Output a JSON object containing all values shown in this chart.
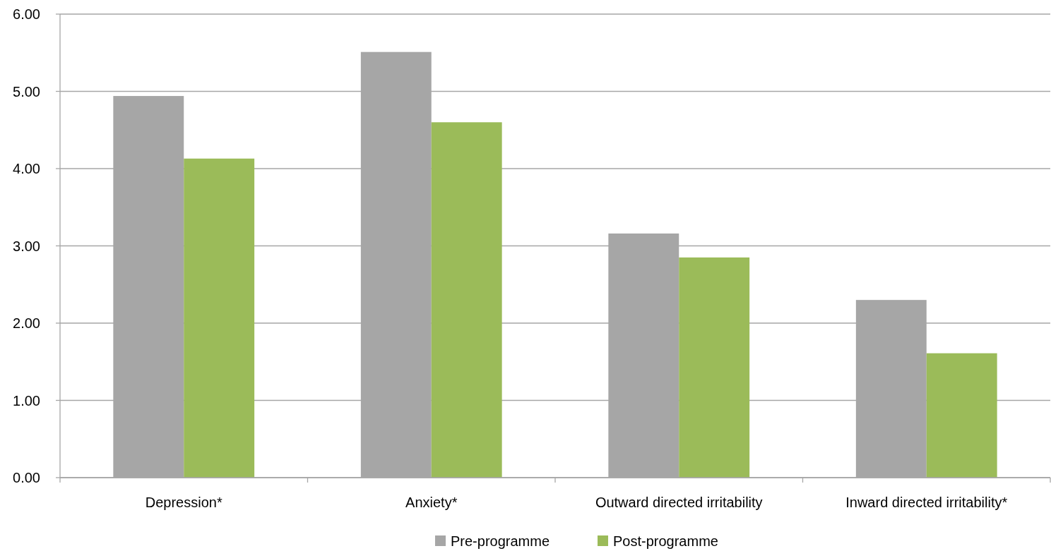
{
  "chart_data": {
    "type": "bar",
    "categories": [
      "Depression*",
      "Anxiety*",
      "Outward directed irritability",
      "Inward directed irritability*"
    ],
    "series": [
      {
        "name": "Pre-programme",
        "color": "#a6a6a6",
        "values": [
          4.94,
          5.51,
          3.16,
          2.3
        ]
      },
      {
        "name": "Post-programme",
        "color": "#9bbb59",
        "values": [
          4.13,
          4.6,
          2.85,
          1.61
        ]
      }
    ],
    "ylim": [
      0,
      6
    ],
    "yticks": [
      {
        "value": 0,
        "label": "0.00"
      },
      {
        "value": 1,
        "label": "1.00"
      },
      {
        "value": 2,
        "label": "2.00"
      },
      {
        "value": 3,
        "label": "3.00"
      },
      {
        "value": 4,
        "label": "4.00"
      },
      {
        "value": 5,
        "label": "5.00"
      },
      {
        "value": 6,
        "label": "6.00"
      }
    ],
    "grid": "y",
    "legend": "bottom"
  }
}
